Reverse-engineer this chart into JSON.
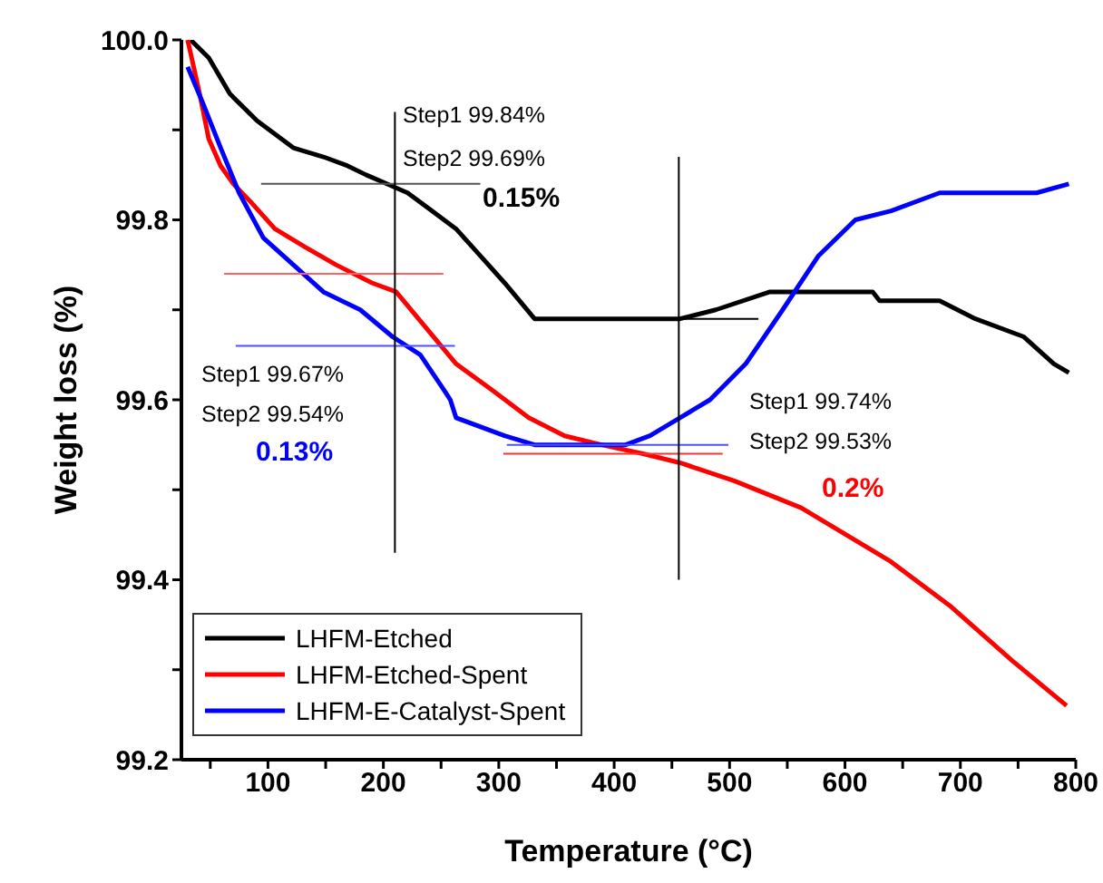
{
  "chart_data": {
    "type": "line",
    "xlabel": "Temperature (°C)",
    "ylabel": "Weight loss (%)",
    "xlim": [
      25,
      800
    ],
    "xticks": [
      {
        "value": 50,
        "label": null
      },
      100,
      {
        "value": 150,
        "label": null
      },
      200,
      {
        "value": 250,
        "label": null
      },
      300,
      {
        "value": 350,
        "label": null
      },
      400,
      {
        "value": 450,
        "label": null
      },
      500,
      {
        "value": 550,
        "label": null
      },
      600,
      {
        "value": 650,
        "label": null
      },
      700,
      {
        "value": 750,
        "label": null
      },
      800
    ],
    "ylim": [
      99.2,
      100
    ],
    "yticks": [
      99.2,
      {
        "value": 99.3,
        "label": null
      },
      99.4,
      {
        "value": 99.5,
        "label": null
      },
      99.6,
      {
        "value": 99.7,
        "label": null
      },
      99.8,
      {
        "value": 99.9,
        "label": null
      },
      {
        "value": 100,
        "label": "100.0"
      }
    ],
    "grid": false,
    "legend": "bottom left",
    "marker": "none",
    "line_style": "solid",
    "series": [
      {
        "name": "LHFM-Etched",
        "color": "#000000",
        "x": [
          33,
          48.7,
          67,
          90.6,
          122,
          148,
          169,
          185,
          203,
          221,
          242,
          263,
          284,
          305,
          331,
          457,
          488,
          535,
          624,
          630,
          682,
          713,
          755,
          781,
          794
        ],
        "values": [
          100,
          99.98,
          99.94,
          99.91,
          99.88,
          99.87,
          99.86,
          99.85,
          99.84,
          99.83,
          99.81,
          99.79,
          99.76,
          99.73,
          99.69,
          99.69,
          99.7,
          99.72,
          99.72,
          99.71,
          99.71,
          99.69,
          99.67,
          99.64,
          99.63
        ]
      },
      {
        "name": "LHFM-Etched-Spent",
        "color": "#ff0000",
        "x": [
          30.4,
          40.8,
          48.7,
          59,
          70,
          85,
          106,
          132,
          159,
          190,
          211,
          237,
          263,
          295,
          326,
          357,
          389,
          425,
          457,
          504,
          562,
          640,
          692,
          745,
          792
        ],
        "values": [
          100,
          99.94,
          99.89,
          99.86,
          99.84,
          99.82,
          99.79,
          99.77,
          99.75,
          99.73,
          99.72,
          99.68,
          99.64,
          99.61,
          99.58,
          99.56,
          99.55,
          99.54,
          99.53,
          99.51,
          99.48,
          99.42,
          99.37,
          99.31,
          99.26
        ]
      },
      {
        "name": "LHFM-E-Catalyst-Spent",
        "color": "#0000ff",
        "x": [
          30.4,
          43.5,
          59,
          75,
          96,
          122,
          148,
          180,
          208,
          232,
          253,
          258,
          263,
          305,
          331,
          410,
          431,
          457,
          483,
          514,
          546,
          577,
          609,
          640,
          682,
          761,
          766,
          794
        ],
        "values": [
          99.97,
          99.93,
          99.88,
          99.83,
          99.78,
          99.75,
          99.72,
          99.7,
          99.67,
          99.65,
          99.61,
          99.6,
          99.58,
          99.56,
          99.55,
          99.55,
          99.56,
          99.58,
          99.6,
          99.64,
          99.7,
          99.76,
          99.8,
          99.81,
          99.83,
          99.83,
          99.83,
          99.84
        ]
      },
      {
        "color": "#555555",
        "x": [
          94,
          284
        ],
        "values": [
          99.84,
          99.84
        ]
      },
      {
        "color": "#000000",
        "x": [
          456,
          525
        ],
        "values": [
          99.69,
          99.69
        ]
      },
      {
        "color": "#ff6060",
        "x": [
          62,
          252
        ],
        "values": [
          99.74,
          99.74
        ]
      },
      {
        "color": "#5050ff",
        "x": [
          72,
          262
        ],
        "values": [
          99.66,
          99.66
        ]
      },
      {
        "color": "#5050ff",
        "x": [
          307,
          499
        ],
        "values": [
          99.55,
          99.55
        ]
      },
      {
        "color": "#ff3030",
        "x": [
          304,
          494
        ],
        "values": [
          99.54,
          99.54
        ]
      },
      {
        "color": "#000000",
        "x": [
          210,
          210
        ],
        "values": [
          99.92,
          99.43
        ]
      },
      {
        "color": "#000000",
        "x": [
          456,
          456
        ],
        "values": [
          99.87,
          99.4
        ]
      }
    ],
    "annotations": [
      "Step1 99.84%",
      "Step2 99.69%",
      "0.15%",
      "Step1 99.67%",
      "Step2 99.54%",
      "0.13%",
      "Step1 99.74%",
      "Step2 99.53%",
      "0.2%"
    ]
  }
}
